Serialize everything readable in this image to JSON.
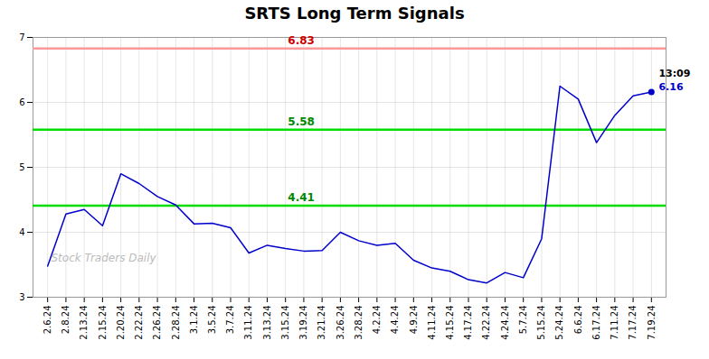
{
  "chart_data": {
    "type": "line",
    "title": "SRTS Long Term Signals",
    "categories": [
      "2.6.24",
      "2.8.24",
      "2.13.24",
      "2.15.24",
      "2.20.24",
      "2.22.24",
      "2.26.24",
      "2.28.24",
      "3.1.24",
      "3.5.24",
      "3.7.24",
      "3.11.24",
      "3.13.24",
      "3.15.24",
      "3.19.24",
      "3.21.24",
      "3.26.24",
      "3.28.24",
      "4.2.24",
      "4.4.24",
      "4.9.24",
      "4.11.24",
      "4.15.24",
      "4.17.24",
      "4.22.24",
      "4.24.24",
      "5.7.24",
      "5.15.24",
      "5.24.24",
      "6.6.24",
      "6.17.24",
      "7.11.24",
      "7.17.24",
      "7.19.24"
    ],
    "values": [
      3.48,
      4.28,
      4.35,
      4.1,
      4.9,
      4.75,
      4.55,
      4.42,
      4.13,
      4.14,
      4.07,
      3.68,
      3.8,
      3.75,
      3.71,
      3.72,
      4.0,
      3.87,
      3.8,
      3.83,
      3.57,
      3.45,
      3.4,
      3.27,
      3.22,
      3.38,
      3.3,
      3.9,
      6.25,
      6.05,
      5.38,
      5.8,
      6.1,
      6.16
    ],
    "color": "#0000cc",
    "ylim": [
      3,
      7
    ],
    "yticks": [
      3,
      4,
      5,
      6,
      7
    ],
    "grid": true,
    "hlines": [
      {
        "value": 6.83,
        "color": "#ff9999",
        "label_color": "#cc0000"
      },
      {
        "value": 5.58,
        "color": "#00dd00",
        "label_color": "#008800"
      },
      {
        "value": 4.41,
        "color": "#00dd00",
        "label_color": "#008800"
      }
    ],
    "last_point": {
      "time": "13:09",
      "value": 6.16
    },
    "watermark": "Stock Traders Daily"
  }
}
